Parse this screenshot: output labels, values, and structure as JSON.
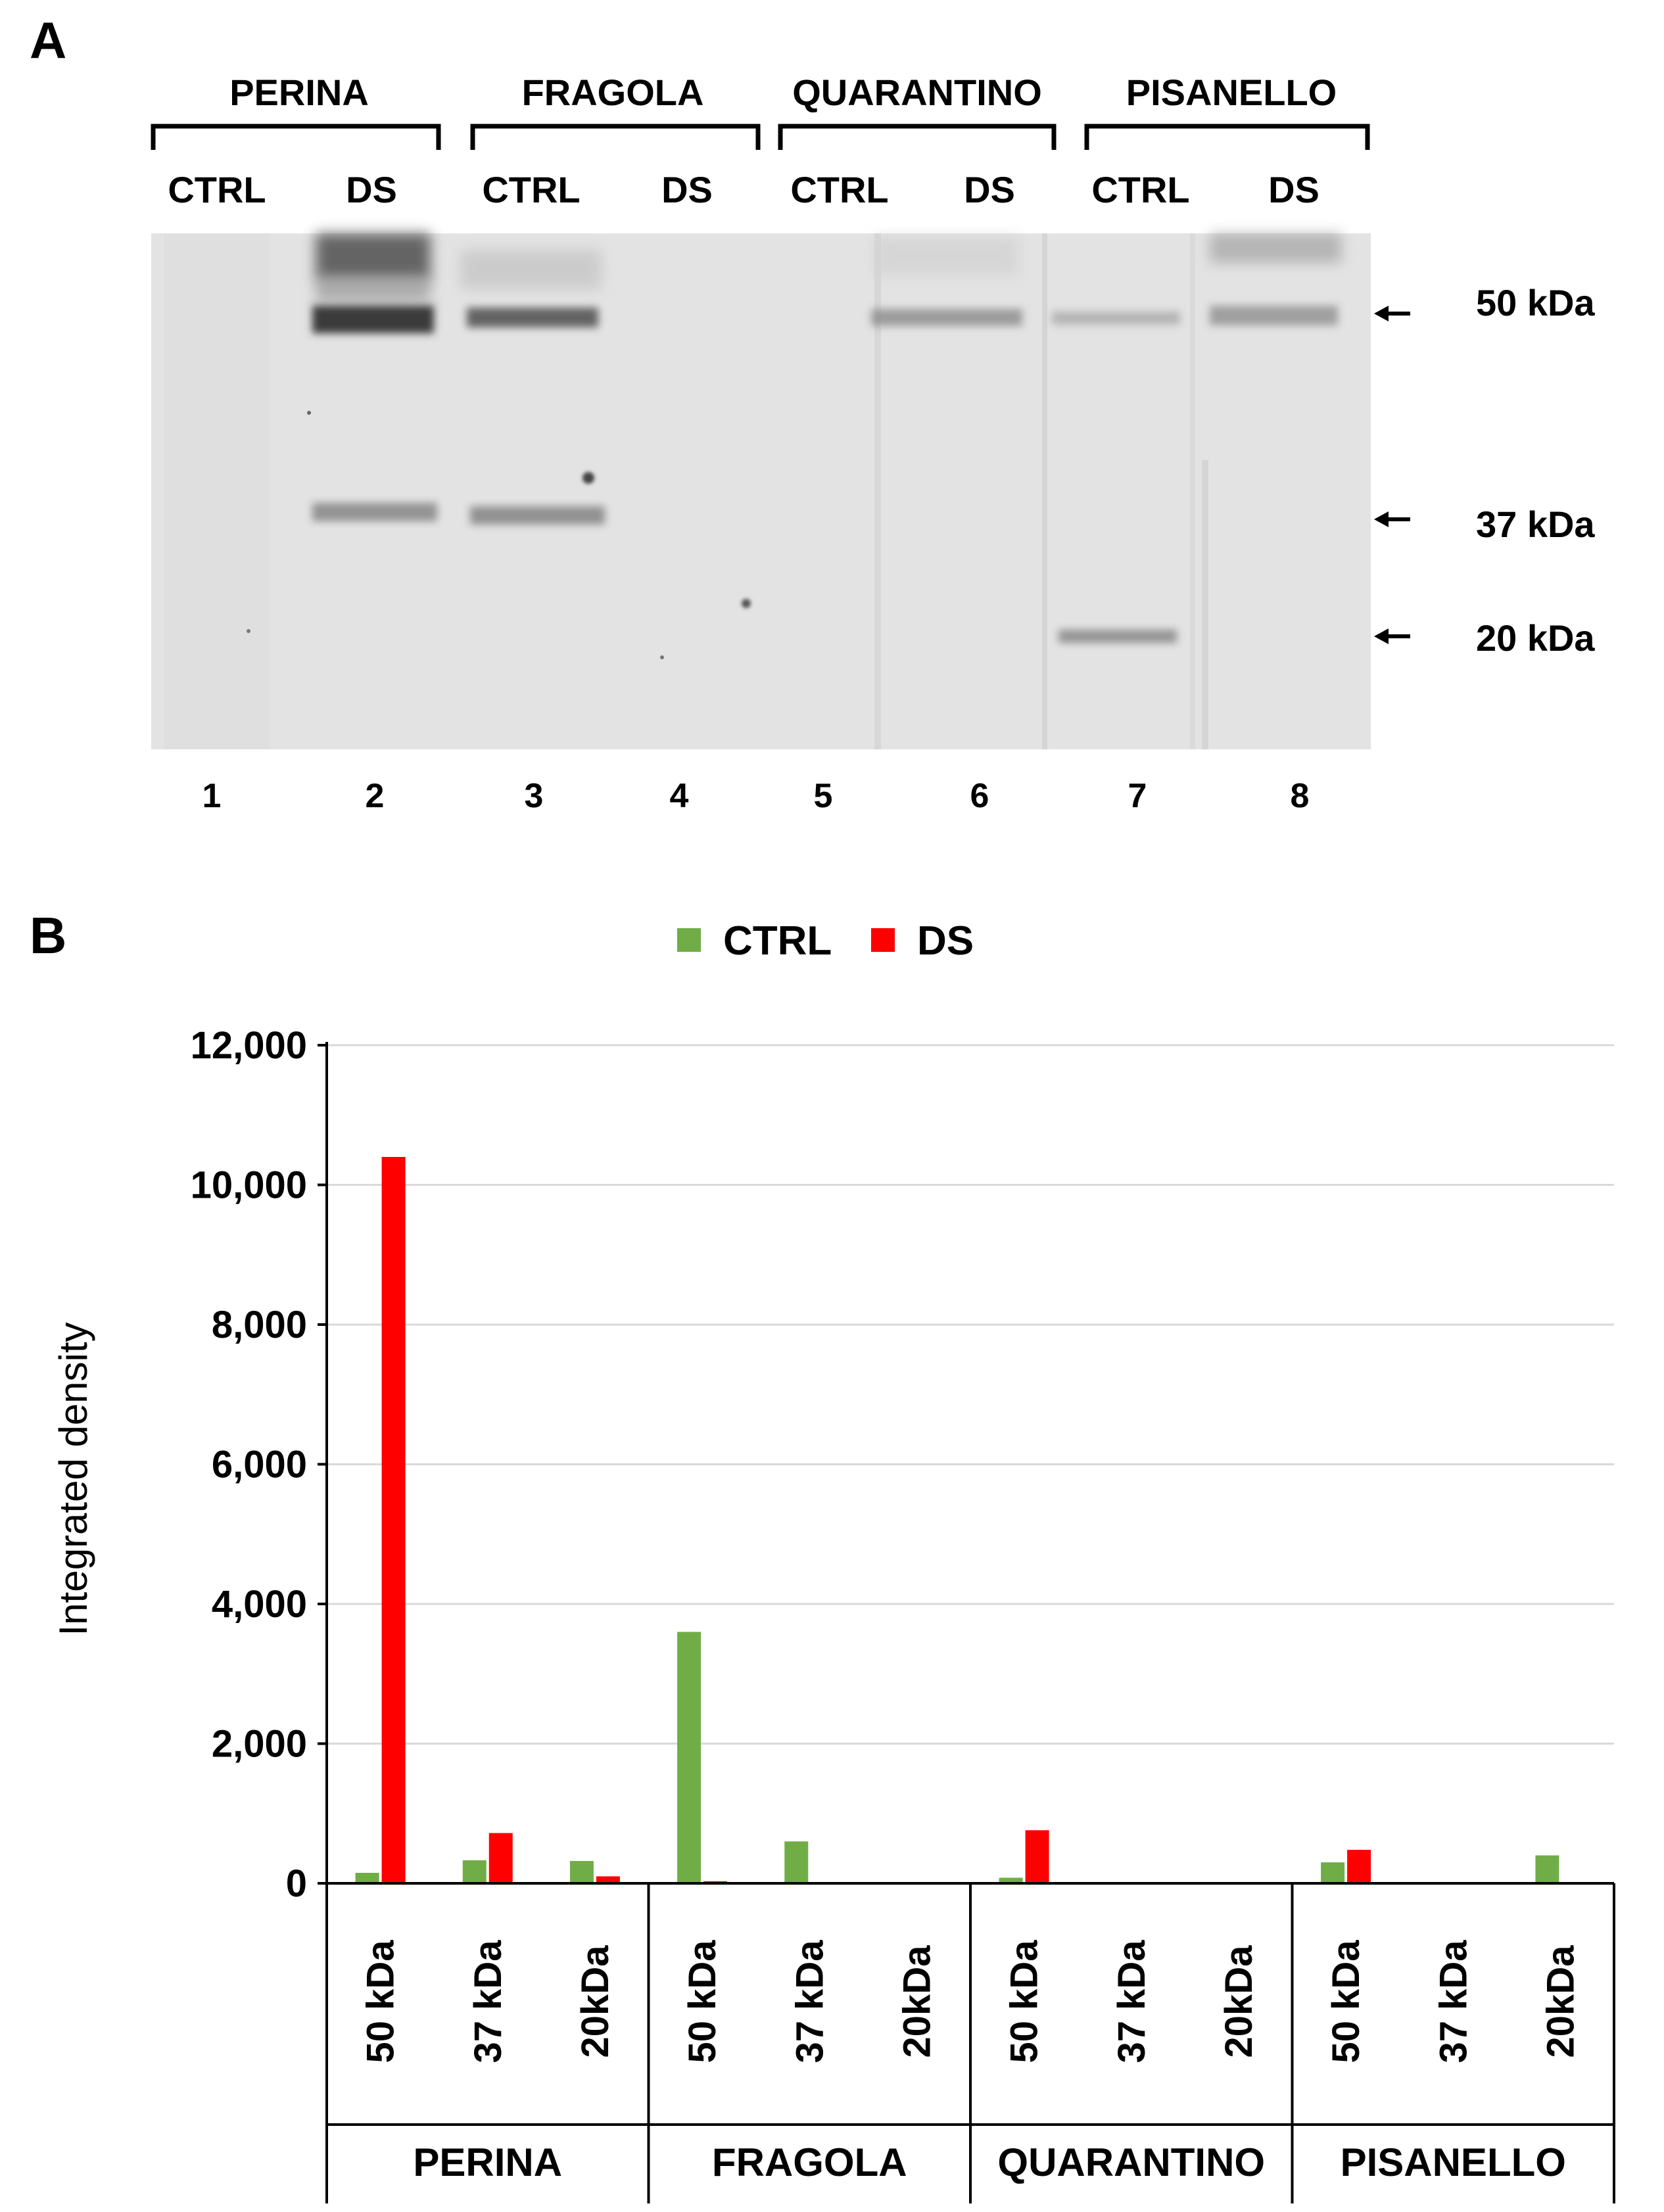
{
  "panel_a": {
    "letter": "A",
    "groups": [
      "PERINA",
      "FRAGOLA",
      "QUARANTINO",
      "PISANELLO"
    ],
    "lane_conditions": [
      "CTRL",
      "DS",
      "CTRL",
      "DS",
      "CTRL",
      "DS",
      "CTRL",
      "DS"
    ],
    "lane_numbers": [
      "1",
      "2",
      "3",
      "4",
      "5",
      "6",
      "7",
      "8"
    ],
    "markers": [
      "50 kDa",
      "37 kDa",
      "20 kDa"
    ]
  },
  "panel_b": {
    "letter": "B"
  },
  "colors": {
    "ctrl": "#70ad47",
    "ds": "#ff0000",
    "grid": "#d9d9d9",
    "gel_bg": "#e3e3e3"
  },
  "chart_data": {
    "type": "bar",
    "title": "",
    "ylabel": "Integrated density",
    "xlabel": "",
    "ylim": [
      0,
      12000
    ],
    "yticks": [
      "0",
      "2,000",
      "4,000",
      "6,000",
      "8,000",
      "10,000",
      "12,000"
    ],
    "groups": [
      "PERINA",
      "FRAGOLA",
      "QUARANTINO",
      "PISANELLO"
    ],
    "categories": [
      "50 kDa",
      "37 kDa",
      "20kDa",
      "50 kDa",
      "37 kDa",
      "20kDa",
      "50 kDa",
      "37 kDa",
      "20kDa",
      "50 kDa",
      "37 kDa",
      "20kDa"
    ],
    "series": [
      {
        "name": "CTRL",
        "values": [
          150,
          330,
          320,
          3600,
          600,
          0,
          80,
          0,
          0,
          300,
          0,
          400
        ]
      },
      {
        "name": "DS",
        "values": [
          10400,
          720,
          100,
          30,
          0,
          0,
          760,
          0,
          0,
          480,
          0,
          0
        ]
      }
    ],
    "grid": true,
    "legend": "top-center"
  }
}
